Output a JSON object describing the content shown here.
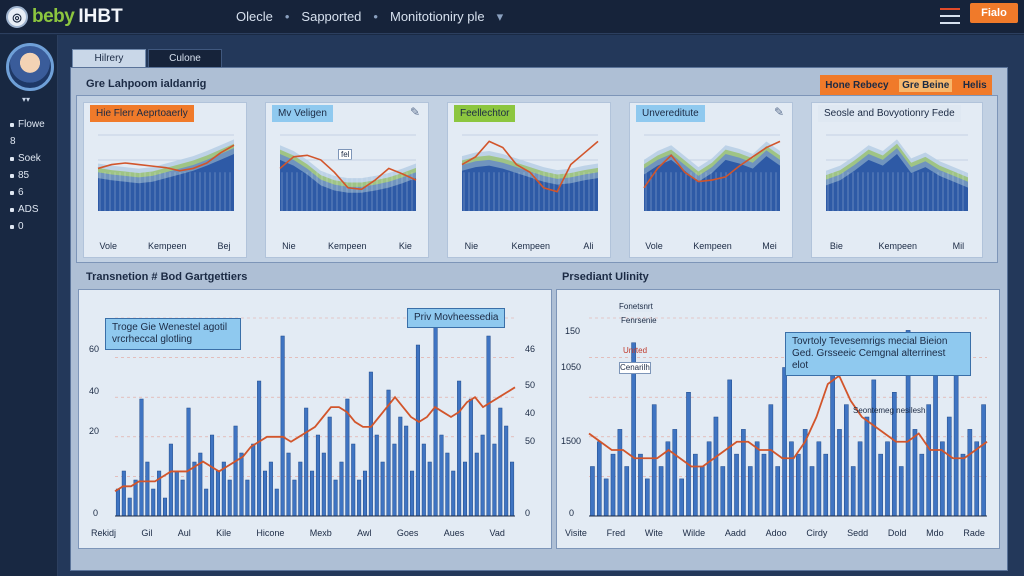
{
  "topbar": {
    "logo_mark": "◎",
    "logo_part_a": "beby",
    "logo_part_b": "IHBT",
    "nav": [
      "Olecle",
      "Sapported",
      "Monitotioniry ple"
    ],
    "nav_separator": "•",
    "button_label": "Fialo"
  },
  "sidebar": {
    "items": [
      "Flowe",
      "8",
      "Soek",
      "85",
      "6",
      "ADS",
      "0"
    ]
  },
  "tabs": [
    "Hilrery",
    "Culone"
  ],
  "section1": {
    "title": "Gre Lahpoom ialdanrig",
    "action_label": "Hone Rebecy",
    "action_tags": [
      "Gre Beine",
      "Helis"
    ],
    "charts": [
      {
        "label": "Hie Flerr Aeprtoaerly",
        "label_color": "#f07a2a",
        "x_labels": [
          "Vole",
          "Kempeen",
          "Bej"
        ]
      },
      {
        "label": "Mv Veligen",
        "label_color": "#8fc9ef",
        "x_labels": [
          "Nie",
          "Kempeen",
          "Kie"
        ],
        "note": "fel"
      },
      {
        "label": "Feellechtor",
        "label_color": "#8cc63f",
        "x_labels": [
          "Nie",
          "Kempeen",
          "Ali"
        ]
      },
      {
        "label": "Unvereditute",
        "label_color": "#8fc9ef",
        "x_labels": [
          "Vole",
          "Kempeen",
          "Mei"
        ]
      },
      {
        "label": "Seosle and Bovyotionry Fede",
        "label_color": "#dfe8f2",
        "x_labels": [
          "Bie",
          "Kempeen",
          "Mil"
        ]
      }
    ]
  },
  "section2": {
    "title": "Transnetion # Bod Gartgettiers",
    "callout1": [
      "Troge Gie Wenestel agotil",
      "vrcrheccal glotling"
    ],
    "callout2": "Priv Movheessedia",
    "y_left": [
      "60",
      "60",
      "40",
      "20",
      "0"
    ],
    "y_right": [
      "46",
      "46",
      "50",
      "40",
      "50",
      "0"
    ],
    "x_labels": [
      "Rekidj",
      "Gil",
      "Aul",
      "Kile",
      "Hicone",
      "Mexb",
      "Awl",
      "Goes",
      "Aues",
      "Vad"
    ],
    "chart_data": {
      "type": "bar",
      "values": [
        3,
        5,
        2,
        4,
        13,
        6,
        3,
        5,
        2,
        8,
        5,
        4,
        12,
        6,
        7,
        3,
        9,
        5,
        6,
        4,
        10,
        7,
        4,
        8,
        15,
        5,
        6,
        3,
        20,
        7,
        4,
        6,
        12,
        5,
        9,
        7,
        11,
        4,
        6,
        13,
        8,
        4,
        5,
        16,
        9,
        6,
        14,
        8,
        11,
        10,
        5,
        19,
        8,
        6,
        22,
        9,
        7,
        5,
        15,
        6,
        13,
        7,
        9,
        20,
        8,
        12,
        10,
        6
      ],
      "line": [
        5,
        6,
        6,
        7,
        7,
        7,
        8,
        9,
        9,
        9,
        10,
        11,
        10,
        9,
        10,
        11,
        12,
        14,
        15,
        16,
        16,
        16,
        15,
        16,
        17,
        18,
        20,
        22,
        22,
        21,
        19,
        18,
        18,
        20,
        22,
        24,
        22,
        20,
        19,
        20,
        22,
        21,
        20,
        21,
        23,
        24,
        22,
        23,
        24,
        25,
        26
      ]
    }
  },
  "section3": {
    "title": "Prsediant Ulinity",
    "callout": [
      "Tovrtoly Tevesemrigs mecial Bieion",
      "Ged. Grsseeic Cemgnal alterrinest elot"
    ],
    "y_left": [
      "150",
      "1050",
      "1500",
      "0"
    ],
    "x_labels": [
      "Visite",
      "Fred",
      "Wite",
      "Wilde",
      "Aadd",
      "Adoo",
      "Cirdy",
      "Sedd",
      "Dold",
      "Mdo",
      "Rade"
    ],
    "notes": [
      "Fonetsnrt",
      "Fenrsenie",
      "Unrted",
      "Cenarilh",
      "Seontemeg nesilesh"
    ],
    "chart_data": {
      "type": "bar",
      "values": [
        4,
        6,
        3,
        5,
        7,
        4,
        14,
        5,
        3,
        9,
        4,
        6,
        7,
        3,
        10,
        5,
        4,
        6,
        8,
        4,
        11,
        5,
        7,
        4,
        6,
        5,
        9,
        4,
        12,
        6,
        5,
        7,
        4,
        6,
        5,
        13,
        7,
        9,
        4,
        6,
        8,
        11,
        5,
        6,
        10,
        4,
        15,
        7,
        5,
        9,
        12,
        6,
        8,
        14,
        5,
        7,
        6,
        9
      ],
      "line": [
        10,
        9,
        8,
        8,
        7,
        7,
        7,
        8,
        7,
        6,
        6,
        7,
        8,
        9,
        9,
        8,
        8,
        7,
        7,
        9,
        12,
        16,
        17,
        14,
        12,
        11,
        10,
        9,
        9,
        10,
        8,
        8,
        7,
        7,
        8,
        9
      ]
    }
  }
}
